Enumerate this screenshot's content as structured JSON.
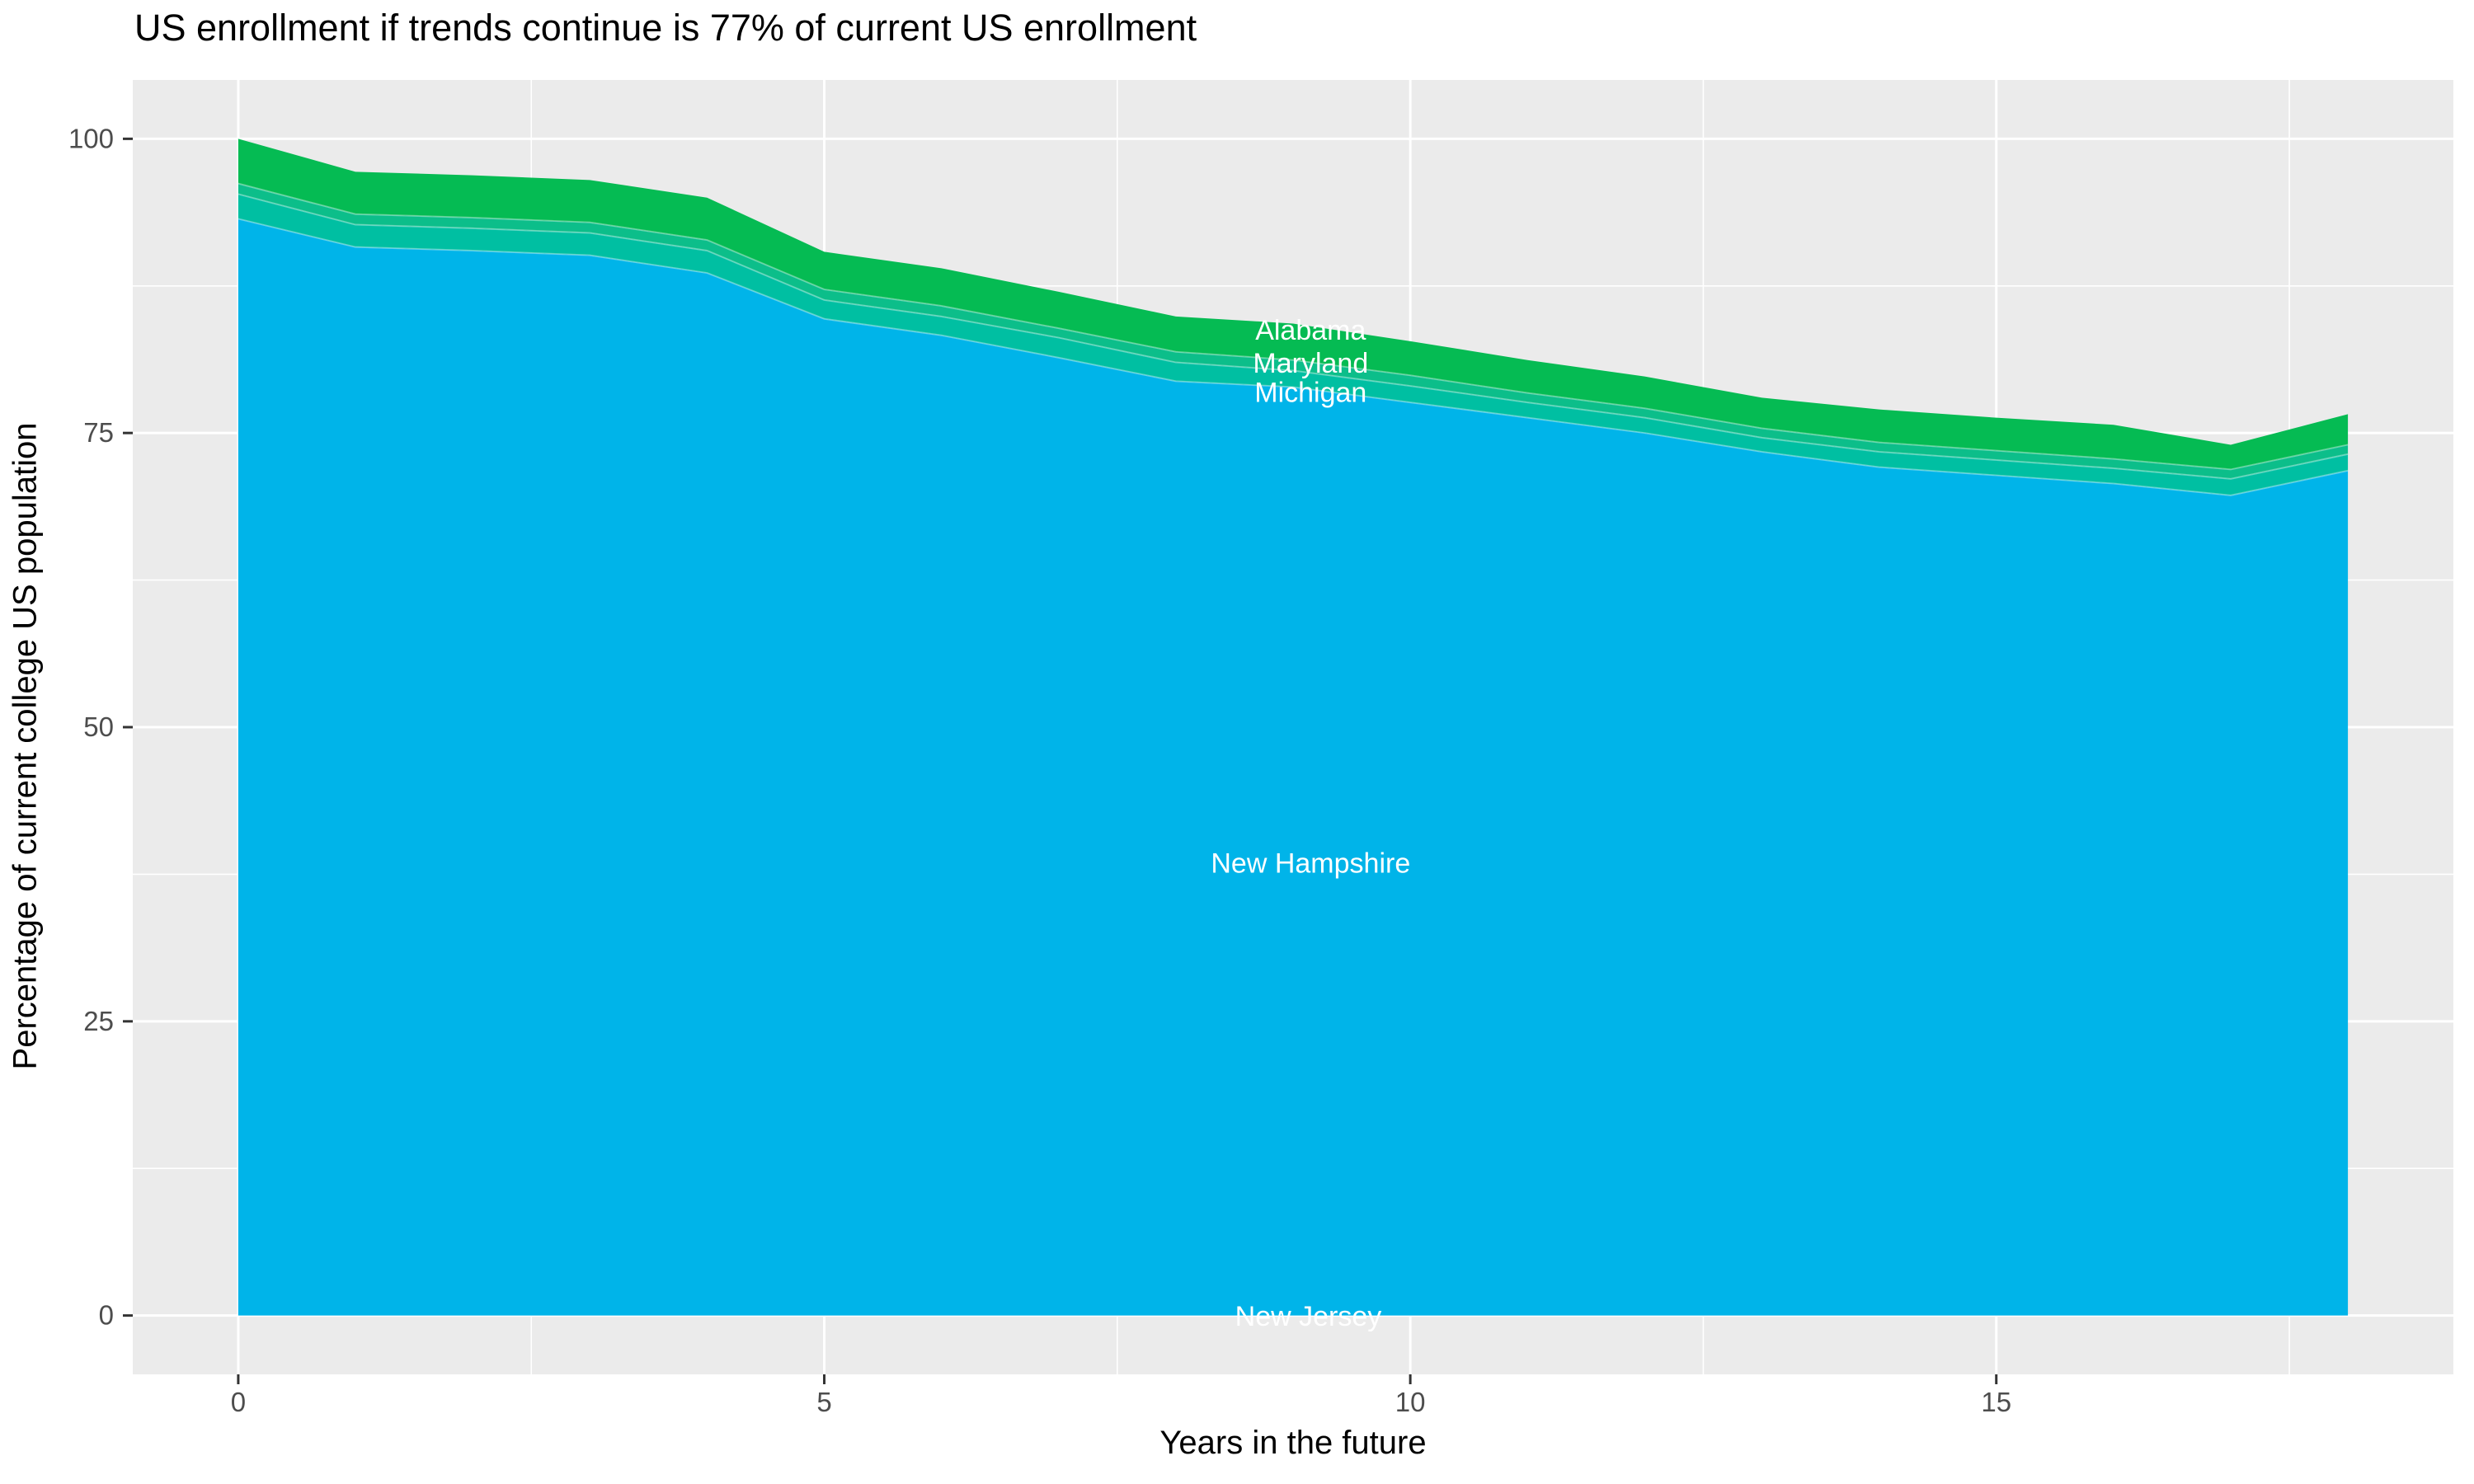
{
  "title": "US enrollment if trends continue is 77% of current US enrollment",
  "panel": {
    "background": "#EBEBEB",
    "grid_major_color": "#FFFFFF",
    "grid_minor_color": "#FFFFFF",
    "tick_color": "#333333",
    "tick_label_color": "#4D4D4D",
    "band_divider_color": "rgba(255,255,255,0.35)"
  },
  "axes": {
    "x": {
      "title": "Years in the future",
      "range": [
        -0.9,
        18.9
      ],
      "ticks": [
        {
          "value": 0,
          "label": "0"
        },
        {
          "value": 5,
          "label": "5"
        },
        {
          "value": 10,
          "label": "10"
        },
        {
          "value": 15,
          "label": "15"
        }
      ],
      "minor": [
        2.5,
        7.5,
        12.5,
        17.5
      ]
    },
    "y": {
      "title": "Percentage of current college US population",
      "range": [
        -5,
        105
      ],
      "ticks": [
        {
          "value": 0,
          "label": "0"
        },
        {
          "value": 25,
          "label": "25"
        },
        {
          "value": 50,
          "label": "50"
        },
        {
          "value": 75,
          "label": "75"
        },
        {
          "value": 100,
          "label": "100"
        }
      ],
      "minor": [
        12.5,
        37.5,
        62.5,
        87.5
      ]
    }
  },
  "chart_data": {
    "type": "area",
    "stacked": true,
    "stack_order": "first_series_on_top",
    "grid": true,
    "legend": "none",
    "title": "US enrollment if trends continue is 77% of current US enrollment",
    "xlabel": "Years in the future",
    "ylabel": "Percentage of current college US population",
    "xlim": [
      -0.9,
      18.9
    ],
    "ylim": [
      -5,
      105
    ],
    "x": [
      0,
      1,
      2,
      3,
      4,
      5,
      6,
      7,
      8,
      9,
      10,
      11,
      12,
      13,
      14,
      15,
      16,
      17,
      18
    ],
    "series": [
      {
        "name": "Alabama",
        "color": "#05BB53",
        "values": [
          3.8,
          3.6,
          3.6,
          3.6,
          3.6,
          3.2,
          3.2,
          3.1,
          3.0,
          3.1,
          2.9,
          2.8,
          2.7,
          2.6,
          2.8,
          2.8,
          2.9,
          2.1,
          2.6
        ]
      },
      {
        "name": "Maryland",
        "color": "#0CBE8A",
        "values": [
          0.9,
          0.9,
          0.9,
          0.9,
          0.9,
          0.9,
          0.9,
          0.8,
          0.9,
          0.9,
          0.9,
          0.8,
          0.8,
          0.8,
          0.8,
          0.8,
          0.8,
          0.8,
          0.8
        ]
      },
      {
        "name": "Michigan",
        "color": "#00BFA2",
        "values": [
          2.1,
          1.9,
          1.9,
          1.9,
          1.9,
          1.6,
          1.6,
          1.7,
          1.6,
          1.4,
          1.4,
          1.3,
          1.3,
          1.2,
          1.3,
          1.3,
          1.3,
          1.4,
          1.4
        ]
      },
      {
        "name": "New Hampshire",
        "color": "#00B4E9",
        "values": [
          93.2,
          90.8,
          90.5,
          90.1,
          88.6,
          84.7,
          83.3,
          81.4,
          79.4,
          78.9,
          77.6,
          76.3,
          75.0,
          73.4,
          72.1,
          71.4,
          70.7,
          69.7,
          71.8
        ]
      },
      {
        "name": "New Jersey",
        "color": "#00BFC4",
        "values": [
          0,
          0,
          0,
          0,
          0,
          0,
          0,
          0,
          0,
          0,
          0,
          0,
          0,
          0,
          0,
          0,
          0,
          0,
          0
        ]
      }
    ],
    "annotations": [
      {
        "text": "Alabama",
        "x": 9.15,
        "y": 83.7,
        "color": "#FFFFFF"
      },
      {
        "text": "Maryland",
        "x": 9.15,
        "y": 80.9,
        "color": "#FFFFFF"
      },
      {
        "text": "Michigan",
        "x": 9.15,
        "y": 78.4,
        "color": "#FFFFFF"
      },
      {
        "text": "New Hampshire",
        "x": 9.15,
        "y": 38.4,
        "color": "#FFFFFF"
      },
      {
        "text": "New Jersey",
        "x": 9.13,
        "y": -0.1,
        "color": "#FFFFFF"
      }
    ]
  }
}
